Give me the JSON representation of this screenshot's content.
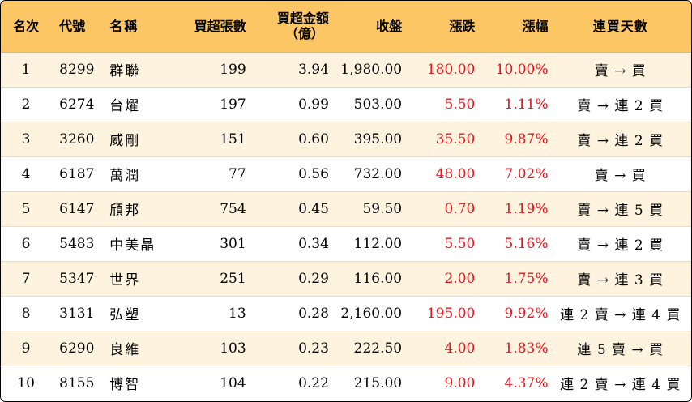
{
  "colors": {
    "header_bg": "#fcc664",
    "stripe_bg": "#fdf3de",
    "up_red": "#e8141b"
  },
  "table": {
    "headers": {
      "rank": "名次",
      "code": "代號",
      "name": "名稱",
      "net_buy_lots": "買超張數",
      "net_buy_amount_line1": "買超金額",
      "net_buy_amount_line2": "（億）",
      "close": "收盤",
      "change": "漲跌",
      "change_pct": "漲幅",
      "buy_days": "連買天數"
    },
    "rows": [
      {
        "rank": "1",
        "code": "8299",
        "name": "群聯",
        "lots": "199",
        "amount": "3.94",
        "close": "1,980.00",
        "change": "180.00",
        "pct": "10.00%",
        "days": "賣 → 買"
      },
      {
        "rank": "2",
        "code": "6274",
        "name": "台燿",
        "lots": "197",
        "amount": "0.99",
        "close": "503.00",
        "change": "5.50",
        "pct": "1.11%",
        "days": "賣 → 連 2 買"
      },
      {
        "rank": "3",
        "code": "3260",
        "name": "威剛",
        "lots": "151",
        "amount": "0.60",
        "close": "395.00",
        "change": "35.50",
        "pct": "9.87%",
        "days": "賣 → 連 2 買"
      },
      {
        "rank": "4",
        "code": "6187",
        "name": "萬潤",
        "lots": "77",
        "amount": "0.56",
        "close": "732.00",
        "change": "48.00",
        "pct": "7.02%",
        "days": "賣 → 買"
      },
      {
        "rank": "5",
        "code": "6147",
        "name": "頎邦",
        "lots": "754",
        "amount": "0.45",
        "close": "59.50",
        "change": "0.70",
        "pct": "1.19%",
        "days": "賣 → 連 5 買"
      },
      {
        "rank": "6",
        "code": "5483",
        "name": "中美晶",
        "lots": "301",
        "amount": "0.34",
        "close": "112.00",
        "change": "5.50",
        "pct": "5.16%",
        "days": "賣 → 連 2 買"
      },
      {
        "rank": "7",
        "code": "5347",
        "name": "世界",
        "lots": "251",
        "amount": "0.29",
        "close": "116.00",
        "change": "2.00",
        "pct": "1.75%",
        "days": "賣 → 連 3 買"
      },
      {
        "rank": "8",
        "code": "3131",
        "name": "弘塑",
        "lots": "13",
        "amount": "0.28",
        "close": "2,160.00",
        "change": "195.00",
        "pct": "9.92%",
        "days": "連 2 賣 → 連 4 買"
      },
      {
        "rank": "9",
        "code": "6290",
        "name": "良維",
        "lots": "103",
        "amount": "0.23",
        "close": "222.50",
        "change": "4.00",
        "pct": "1.83%",
        "days": "連 5 賣 → 買"
      },
      {
        "rank": "10",
        "code": "8155",
        "name": "博智",
        "lots": "104",
        "amount": "0.22",
        "close": "215.00",
        "change": "9.00",
        "pct": "4.37%",
        "days": "連 2 賣 → 連 4 買"
      }
    ]
  }
}
